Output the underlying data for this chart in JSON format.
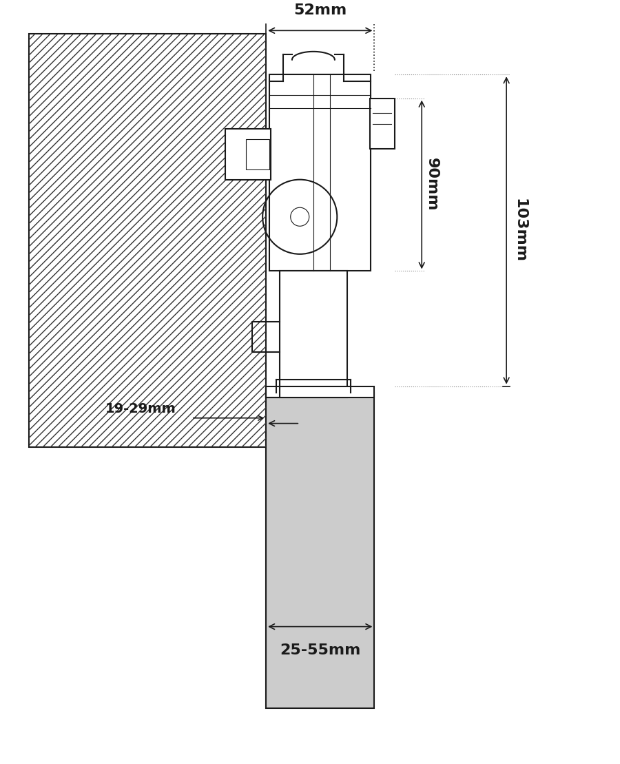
{
  "bg_color": "#ffffff",
  "line_color": "#1a1a1a",
  "hatch_color": "#333333",
  "gray_fill": "#cccccc",
  "light_gray": "#e8e8e8",
  "dim_color": "#333333",
  "dotted_color": "#888888",
  "fig_width": 9.0,
  "fig_height": 11.09,
  "labels": {
    "52mm": "52mm",
    "90mm": "90mm",
    "103mm": "103mm",
    "19_29mm": "19-29mm",
    "25_55mm": "25-55mm"
  }
}
